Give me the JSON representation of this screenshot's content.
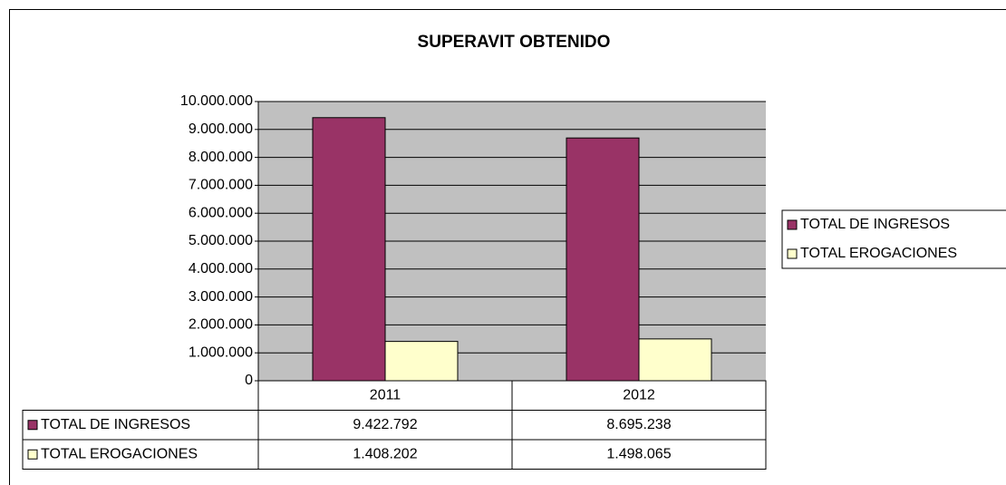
{
  "chart_data": {
    "type": "bar",
    "title": "SUPERAVIT OBTENIDO",
    "categories": [
      "2011",
      "2012"
    ],
    "series": [
      {
        "name": "TOTAL DE INGRESOS",
        "color": "#993366",
        "values": [
          9422792,
          8695238
        ],
        "value_labels": [
          "9.422.792",
          "8.695.238"
        ]
      },
      {
        "name": "TOTAL EROGACIONES",
        "color": "#ffffcc",
        "values": [
          1408202,
          1498065
        ],
        "value_labels": [
          "1.408.202",
          "1.498.065"
        ]
      }
    ],
    "ylim": [
      0,
      10000000
    ],
    "yticks": [
      0,
      {
        "value": 1000000,
        "label": "1.000.000"
      },
      {
        "value": 2000000,
        "label": "2.000.000"
      },
      {
        "value": 3000000,
        "label": "3.000.000"
      },
      {
        "value": 4000000,
        "label": "4.000.000"
      },
      {
        "value": 5000000,
        "label": "5.000.000"
      },
      {
        "value": 6000000,
        "label": "6.000.000"
      },
      {
        "value": 7000000,
        "label": "7.000.000"
      },
      {
        "value": 8000000,
        "label": "8.000.000"
      },
      {
        "value": 9000000,
        "label": "9.000.000"
      },
      {
        "value": 10000000,
        "label": "10.000.000"
      }
    ],
    "grid": true,
    "legend": "right"
  }
}
